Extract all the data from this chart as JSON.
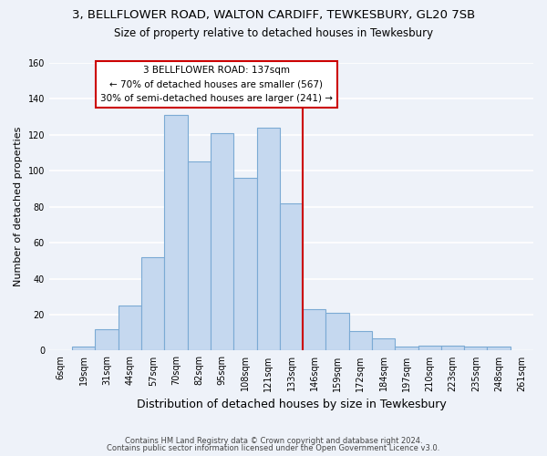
{
  "title_line1": "3, BELLFLOWER ROAD, WALTON CARDIFF, TEWKESBURY, GL20 7SB",
  "title_line2": "Size of property relative to detached houses in Tewkesbury",
  "xlabel": "Distribution of detached houses by size in Tewkesbury",
  "ylabel": "Number of detached properties",
  "bar_labels": [
    "6sqm",
    "19sqm",
    "31sqm",
    "44sqm",
    "57sqm",
    "70sqm",
    "82sqm",
    "95sqm",
    "108sqm",
    "121sqm",
    "133sqm",
    "146sqm",
    "159sqm",
    "172sqm",
    "184sqm",
    "197sqm",
    "210sqm",
    "223sqm",
    "235sqm",
    "248sqm",
    "261sqm"
  ],
  "bar_values": [
    0,
    2,
    12,
    25,
    52,
    131,
    105,
    121,
    96,
    124,
    82,
    23,
    21,
    11,
    7,
    2,
    3,
    3,
    2,
    2,
    0
  ],
  "bar_color": "#c5d8ef",
  "bar_edge_color": "#7baad4",
  "reference_line_color": "#cc0000",
  "annotation_box_color": "#ffffff",
  "annotation_box_edge_color": "#cc0000",
  "ylim": [
    0,
    160
  ],
  "yticks": [
    0,
    20,
    40,
    60,
    80,
    100,
    120,
    140,
    160
  ],
  "footer_line1": "Contains HM Land Registry data © Crown copyright and database right 2024.",
  "footer_line2": "Contains public sector information licensed under the Open Government Licence v3.0.",
  "bg_color": "#eef2f9",
  "plot_bg_color": "#eef2f9",
  "grid_color": "#ffffff"
}
